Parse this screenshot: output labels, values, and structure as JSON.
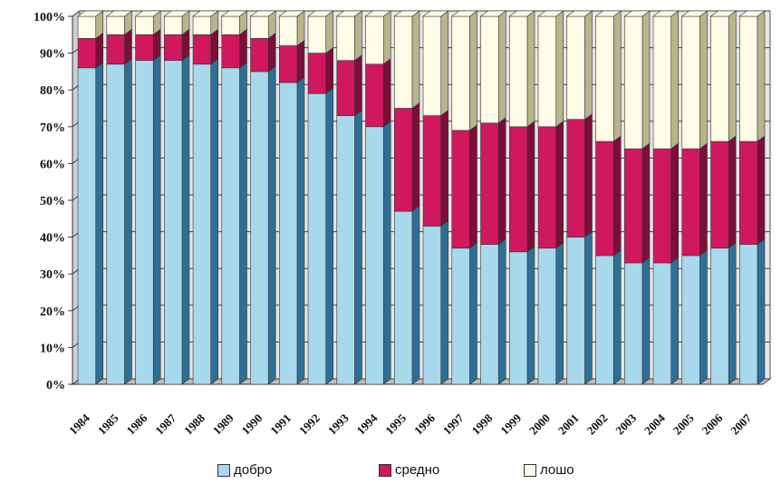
{
  "chart_data": {
    "type": "bar",
    "stacked": true,
    "percent": true,
    "categories": [
      "1984",
      "1985",
      "1986",
      "1987",
      "1988",
      "1989",
      "1990",
      "1991",
      "1992",
      "1993",
      "1994",
      "1995",
      "1996",
      "1997",
      "1998",
      "1999",
      "2000",
      "2001",
      "2002",
      "2003",
      "2004",
      "2005",
      "2006",
      "2007"
    ],
    "series": [
      {
        "name": "добро",
        "color": "#a8d8ec",
        "side": "#2e6f96",
        "values": [
          86,
          87,
          88,
          88,
          87,
          86,
          85,
          82,
          79,
          73,
          70,
          47,
          43,
          37,
          38,
          36,
          37,
          40,
          35,
          33,
          33,
          35,
          37,
          38
        ]
      },
      {
        "name": "средно",
        "color": "#d0185e",
        "side": "#7a0f38",
        "values": [
          8,
          8,
          7,
          7,
          8,
          9,
          9,
          10,
          11,
          15,
          17,
          28,
          30,
          32,
          33,
          34,
          33,
          32,
          31,
          31,
          31,
          29,
          29,
          28
        ]
      },
      {
        "name": "лошо",
        "color": "#fffbe6",
        "side": "#b8b48c",
        "values": [
          6,
          5,
          5,
          5,
          5,
          5,
          6,
          8,
          10,
          12,
          13,
          25,
          27,
          31,
          29,
          30,
          30,
          28,
          34,
          36,
          36,
          36,
          34,
          34
        ]
      }
    ],
    "yticks": [
      "0%",
      "10%",
      "20%",
      "30%",
      "40%",
      "50%",
      "60%",
      "70%",
      "80%",
      "90%",
      "100%"
    ],
    "ylim": [
      0,
      100
    ],
    "grid": true,
    "legend": "bottom"
  }
}
